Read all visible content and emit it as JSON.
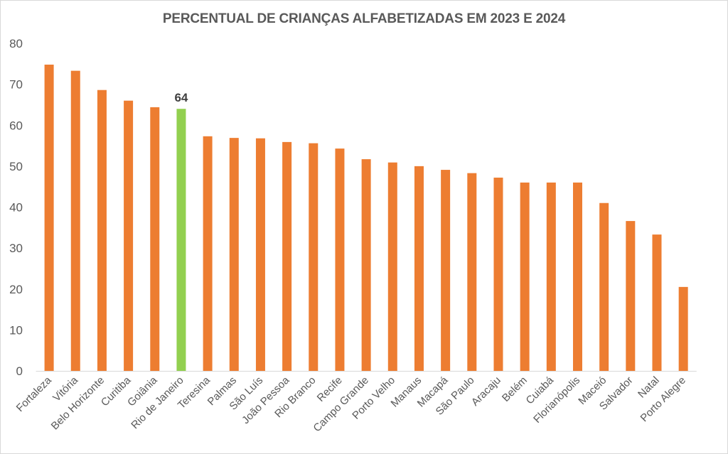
{
  "chart_data": {
    "type": "bar",
    "title": "PERCENTUAL DE CRIANÇAS ALFABETIZADAS EM  2023 E 2024",
    "xlabel": "",
    "ylabel": "",
    "ylim": [
      0,
      80
    ],
    "yticks": [
      0,
      10,
      20,
      30,
      40,
      50,
      60,
      70,
      80
    ],
    "grid": false,
    "legend": "none",
    "categories": [
      "Fortaleza",
      "Vitória",
      "Belo Horizonte",
      "Curitiba",
      "Goiânia",
      "Rio de Janeiro",
      "Teresina",
      "Palmas",
      "São Luís",
      "João Pessoa",
      "Rio Branco",
      "Recife",
      "Campo Grande",
      "Porto Velho",
      "Manaus",
      "Macapá",
      "São Paulo",
      "Aracaju",
      "Belém",
      "Cuiabá",
      "Florianópolis",
      "Maceió",
      "Salvador",
      "Natal",
      "Porto Alegre"
    ],
    "values": [
      74.8,
      73.3,
      68.6,
      66.0,
      64.4,
      64,
      57.3,
      56.9,
      56.8,
      55.9,
      55.6,
      54.3,
      51.7,
      50.9,
      50.0,
      49.1,
      48.3,
      47.2,
      46.0,
      46.0,
      46.0,
      41.0,
      36.6,
      33.3,
      20.5
    ],
    "colors": {
      "default": "#ED7D31",
      "highlight": "#92D050"
    },
    "highlight_category": "Rio de Janeiro",
    "data_labels": [
      {
        "category": "Rio de Janeiro",
        "text": "64"
      }
    ]
  }
}
